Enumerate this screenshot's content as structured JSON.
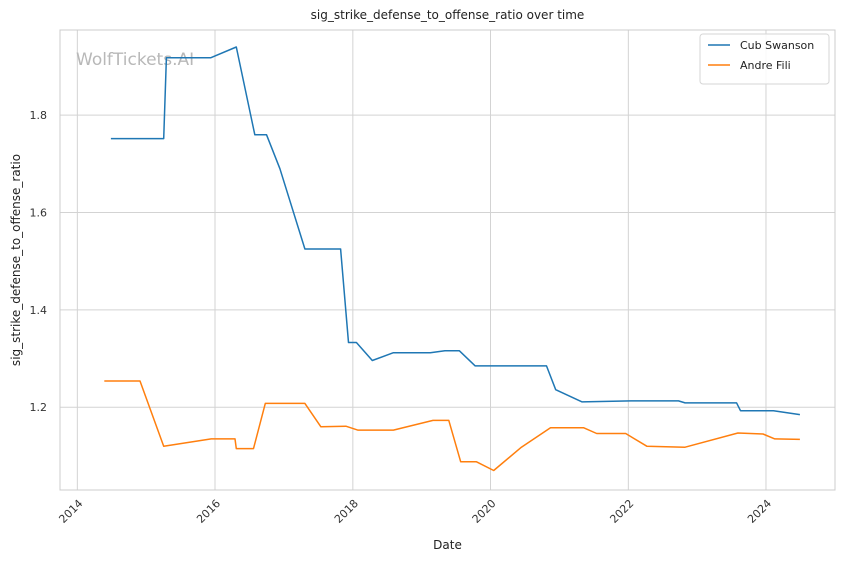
{
  "watermark": "WolfTickets.AI",
  "chart_data": {
    "type": "line",
    "title": "sig_strike_defense_to_offense_ratio over time",
    "xlabel": "Date",
    "ylabel": "sig_strike_defense_to_offense_ratio",
    "x_range": [
      "2013-10-01",
      "2025-01-01"
    ],
    "ylim": [
      1.03,
      1.975
    ],
    "x_ticks": [
      {
        "date": "2014-01-01",
        "label": "2014"
      },
      {
        "date": "2016-01-01",
        "label": "2016"
      },
      {
        "date": "2018-01-01",
        "label": "2018"
      },
      {
        "date": "2020-01-01",
        "label": "2020"
      },
      {
        "date": "2022-01-01",
        "label": "2022"
      },
      {
        "date": "2024-01-01",
        "label": "2024"
      }
    ],
    "y_ticks": [
      {
        "value": 1.2,
        "label": "1.2"
      },
      {
        "value": 1.4,
        "label": "1.4"
      },
      {
        "value": 1.6,
        "label": "1.6"
      },
      {
        "value": 1.8,
        "label": "1.8"
      }
    ],
    "grid": true,
    "legend_position": "top-right",
    "series": [
      {
        "name": "Cub Swanson",
        "color": "#1f77b4",
        "points": [
          [
            "2014-06-28",
            1.752
          ],
          [
            "2015-04-04",
            1.752
          ],
          [
            "2015-04-18",
            1.918
          ],
          [
            "2015-12-10",
            1.918
          ],
          [
            "2016-04-23",
            1.94
          ],
          [
            "2016-07-30",
            1.76
          ],
          [
            "2016-09-30",
            1.76
          ],
          [
            "2016-12-10",
            1.69
          ],
          [
            "2017-04-22",
            1.525
          ],
          [
            "2017-10-28",
            1.525
          ],
          [
            "2017-12-09",
            1.333
          ],
          [
            "2018-01-20",
            1.333
          ],
          [
            "2018-04-14",
            1.296
          ],
          [
            "2018-08-04",
            1.312
          ],
          [
            "2019-02-16",
            1.312
          ],
          [
            "2019-05-04",
            1.316
          ],
          [
            "2019-07-20",
            1.316
          ],
          [
            "2019-10-12",
            1.285
          ],
          [
            "2020-10-24",
            1.285
          ],
          [
            "2020-12-12",
            1.236
          ],
          [
            "2021-05-01",
            1.211
          ],
          [
            "2022-01-15",
            1.213
          ],
          [
            "2022-09-24",
            1.213
          ],
          [
            "2022-10-29",
            1.209
          ],
          [
            "2023-07-29",
            1.209
          ],
          [
            "2023-08-19",
            1.193
          ],
          [
            "2024-02-10",
            1.193
          ],
          [
            "2024-06-29",
            1.185
          ]
        ]
      },
      {
        "name": "Andre Fili",
        "color": "#ff7f0e",
        "points": [
          [
            "2014-05-24",
            1.254
          ],
          [
            "2014-11-29",
            1.254
          ],
          [
            "2015-04-04",
            1.12
          ],
          [
            "2015-12-12",
            1.135
          ],
          [
            "2016-04-16",
            1.135
          ],
          [
            "2016-04-23",
            1.115
          ],
          [
            "2016-07-23",
            1.115
          ],
          [
            "2016-09-24",
            1.208
          ],
          [
            "2017-04-22",
            1.208
          ],
          [
            "2017-07-15",
            1.16
          ],
          [
            "2017-11-25",
            1.161
          ],
          [
            "2018-01-27",
            1.153
          ],
          [
            "2018-08-04",
            1.153
          ],
          [
            "2019-03-02",
            1.173
          ],
          [
            "2019-05-25",
            1.173
          ],
          [
            "2019-07-27",
            1.088
          ],
          [
            "2019-10-19",
            1.088
          ],
          [
            "2020-01-18",
            1.07
          ],
          [
            "2020-06-13",
            1.118
          ],
          [
            "2020-11-14",
            1.158
          ],
          [
            "2021-05-08",
            1.158
          ],
          [
            "2021-07-17",
            1.146
          ],
          [
            "2021-12-18",
            1.146
          ],
          [
            "2022-04-09",
            1.12
          ],
          [
            "2022-10-29",
            1.118
          ],
          [
            "2023-08-05",
            1.147
          ],
          [
            "2023-12-16",
            1.145
          ],
          [
            "2024-02-17",
            1.135
          ],
          [
            "2024-06-29",
            1.134
          ]
        ]
      }
    ]
  }
}
